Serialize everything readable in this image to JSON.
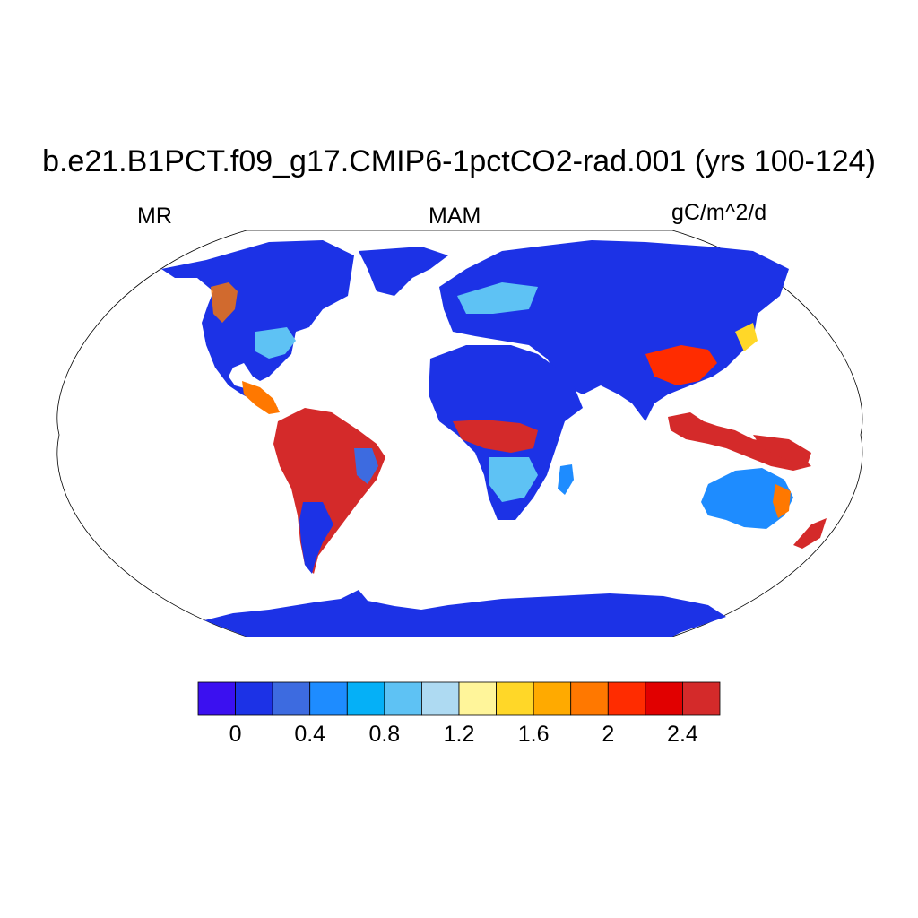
{
  "title": "b.e21.B1PCT.f09_g17.CMIP6-1pctCO2-rad.001 (yrs 100-124)",
  "left_label": "MR",
  "center_label": "MAM",
  "units": "gC/m^2/d",
  "colorbar": {
    "colors": [
      "#3b10f0",
      "#1c32e6",
      "#3d6be0",
      "#1e8cff",
      "#05b0f7",
      "#5ec2f4",
      "#aedaf2",
      "#fff59a",
      "#ffd728",
      "#ffaa00",
      "#ff7800",
      "#ff2c00",
      "#e10000",
      "#d42a2a"
    ],
    "tick_labels": [
      "0",
      "0.4",
      "0.8",
      "1.2",
      "1.6",
      "2",
      "2.4"
    ]
  },
  "map": {
    "projection": "robinson",
    "ocean_color": "#ffffff",
    "land_low_color": "#1c32e6",
    "tropics_color": "#d42a2a"
  }
}
